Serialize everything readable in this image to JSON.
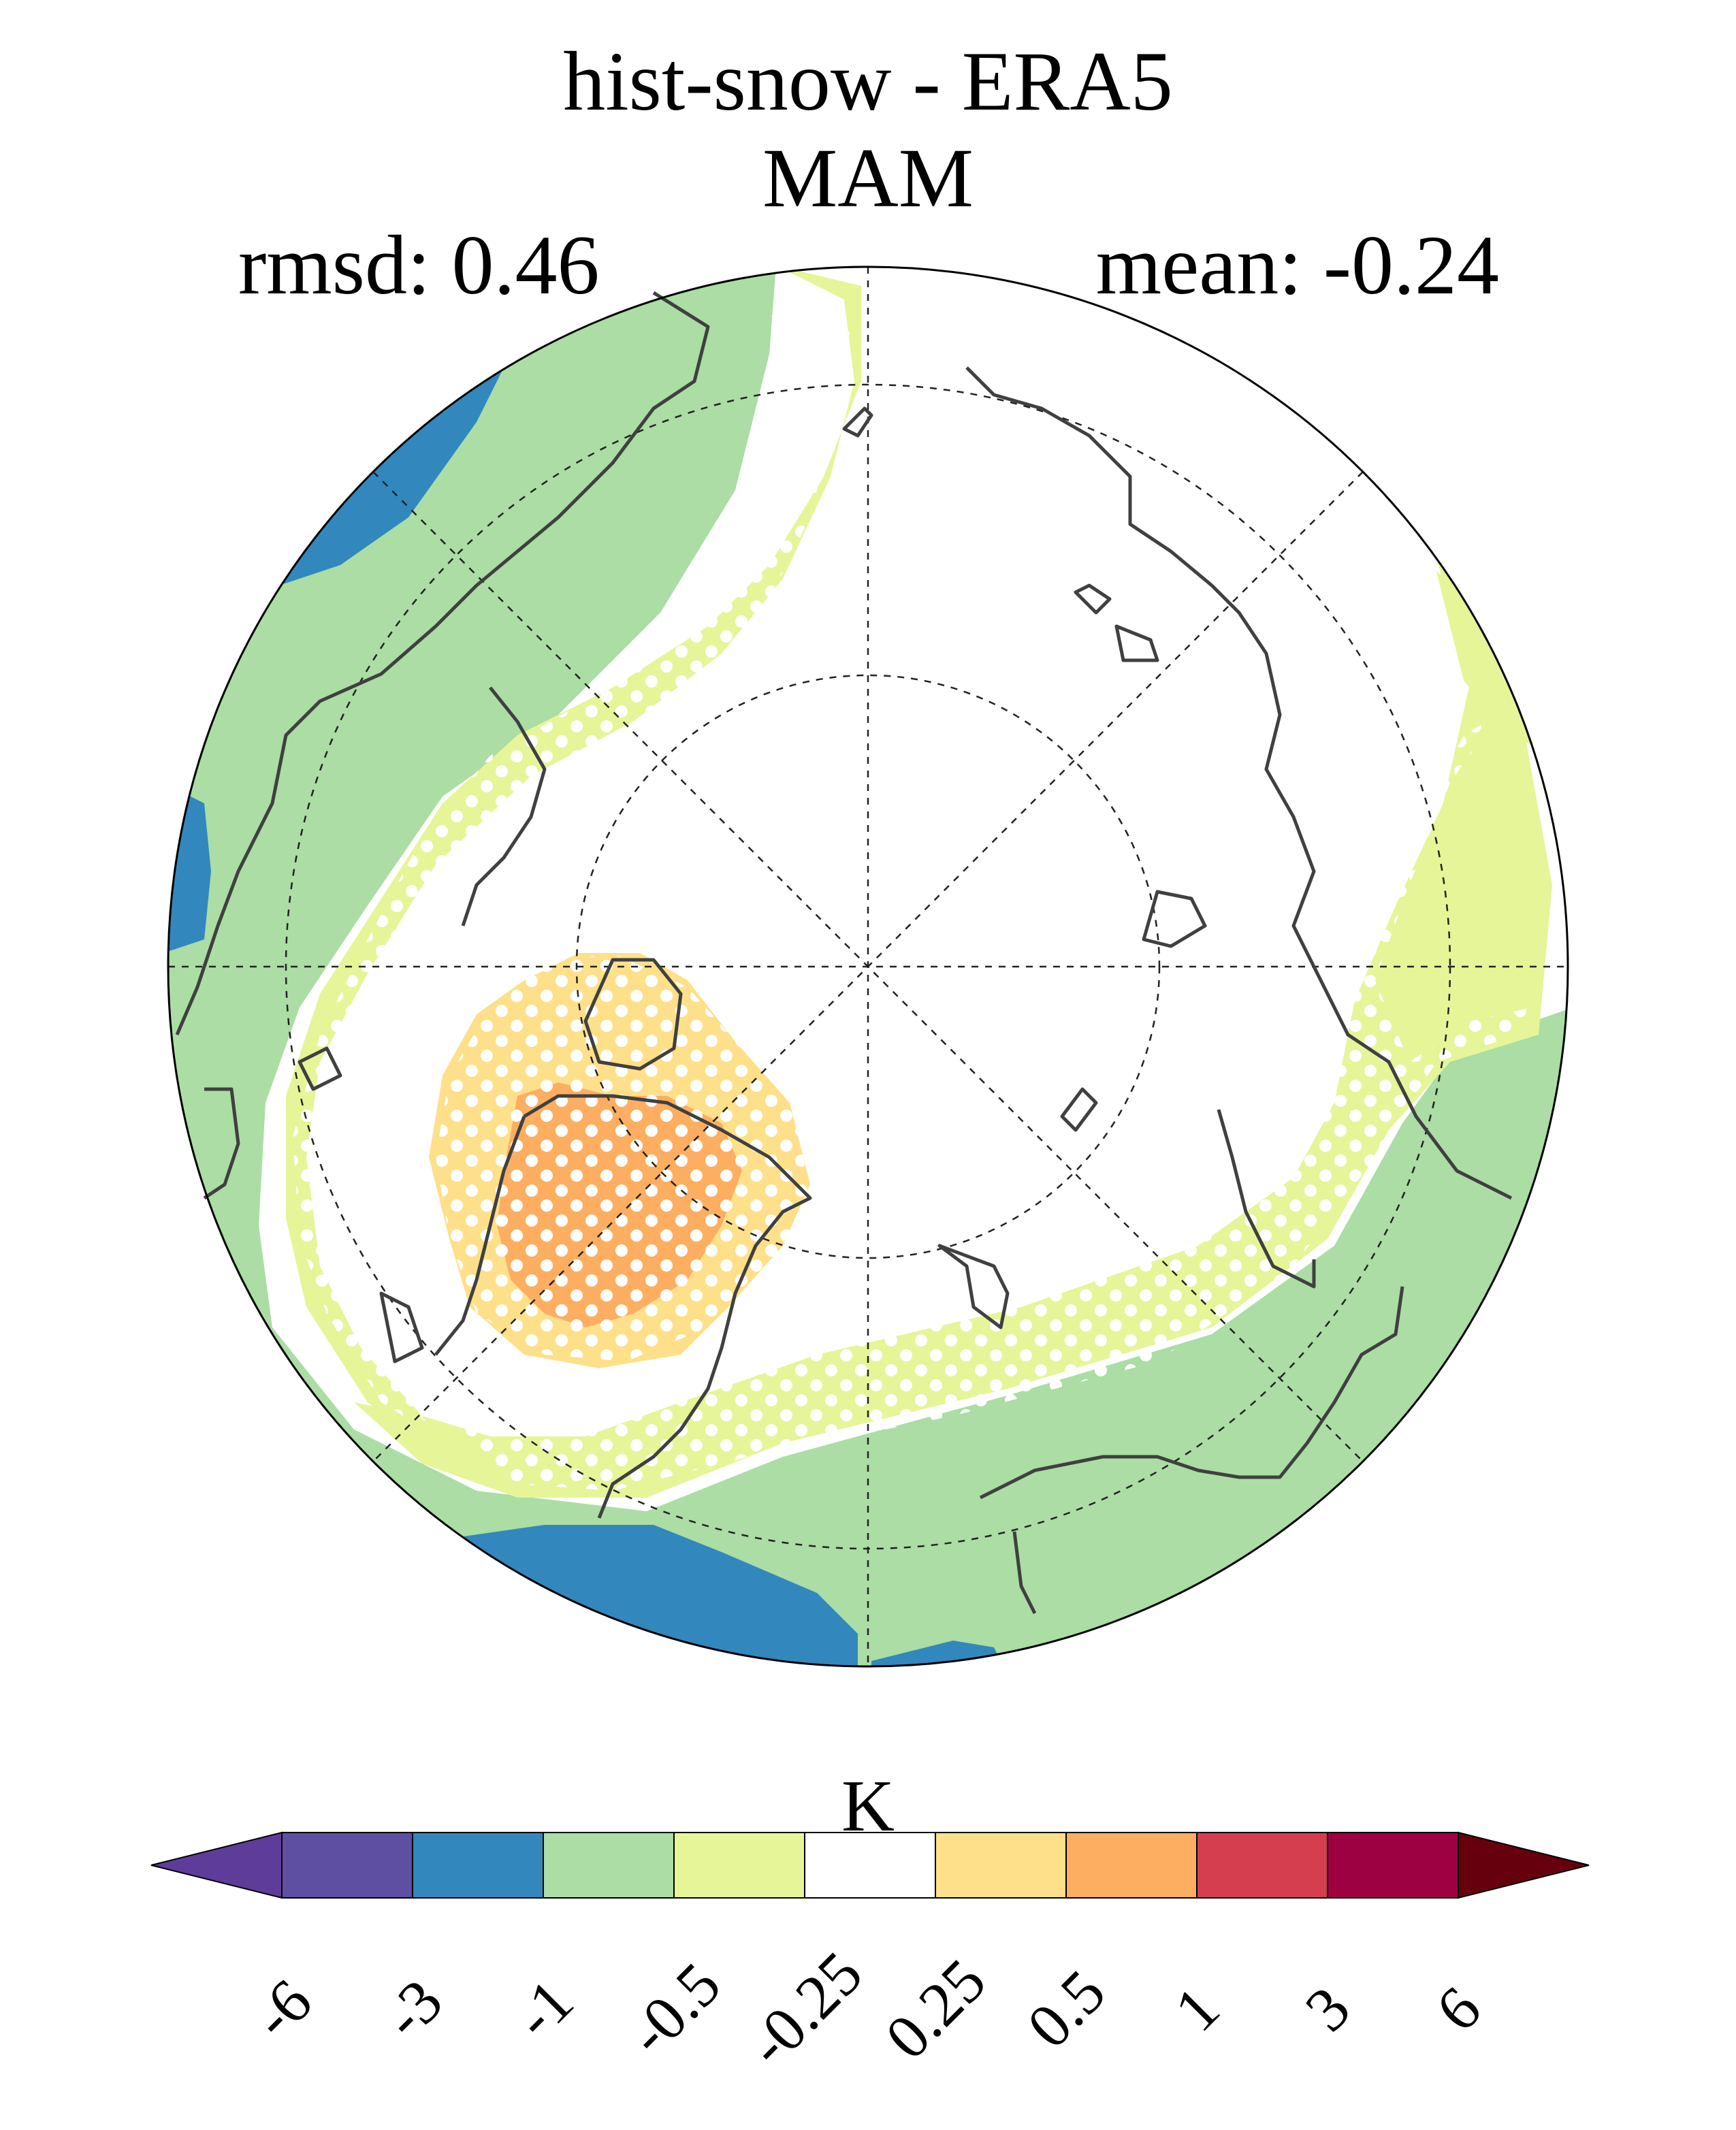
{
  "title": "hist-snow - ERA5",
  "season": "MAM",
  "rmsd_label": "rmsd: 0.46",
  "mean_label": "mean: -0.24",
  "map": {
    "projection": "north-polar-stereographic",
    "stippling": "significant differences (white dots)"
  },
  "colorbar": {
    "unit": "K",
    "ticks": [
      "-6",
      "-3",
      "-1",
      "-0.5",
      "-0.25",
      "0.25",
      "0.5",
      "1",
      "3",
      "6"
    ],
    "colors": [
      "#5e3c99",
      "#5e4fa2",
      "#3288bd",
      "#abdda4",
      "#e6f598",
      "#ffffff",
      "#fee08b",
      "#fdae61",
      "#d53e4f",
      "#9e0142",
      "#67000d"
    ]
  },
  "colors": {
    "blue": "#3288bd",
    "green": "#abdda4",
    "yellow_green": "#e6f598",
    "light_orange": "#fee08b",
    "orange": "#fdae61",
    "coast": "#404040"
  }
}
